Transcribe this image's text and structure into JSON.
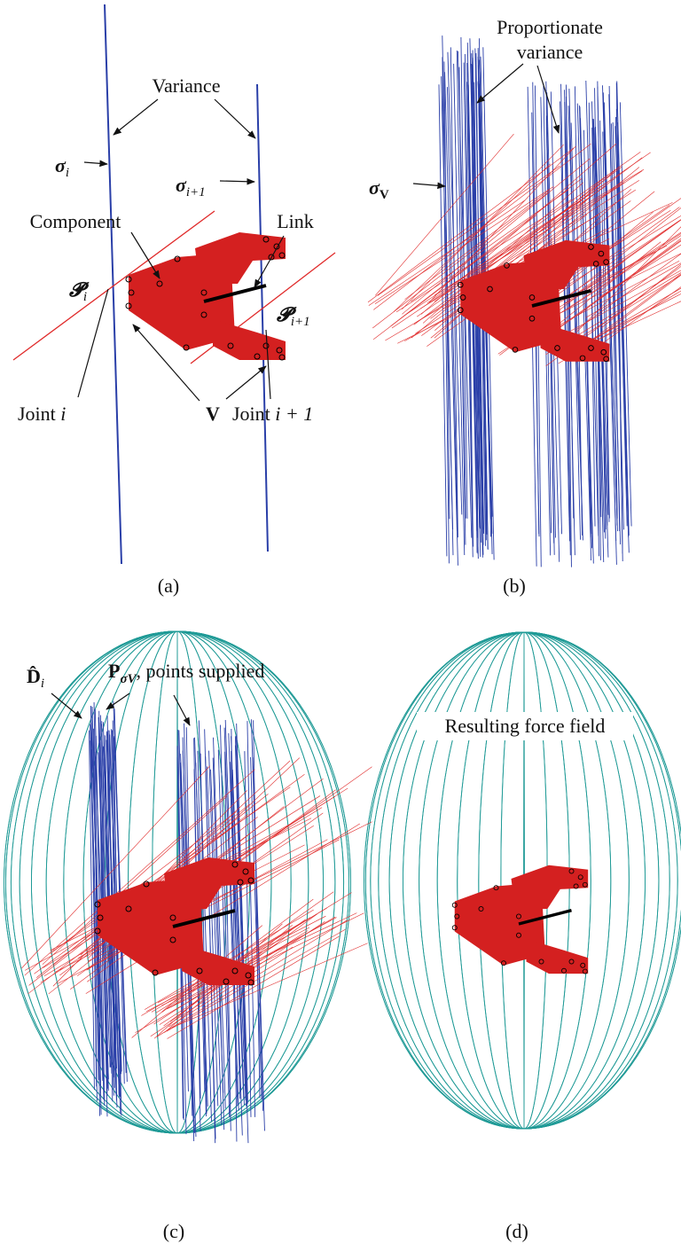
{
  "panels": [
    {
      "caption": "(a)",
      "labels": [
        {
          "text": "Variance"
        },
        {
          "text": "σ",
          "sub": "i"
        },
        {
          "text": "σ",
          "sub": "i+1"
        },
        {
          "text": "Component"
        },
        {
          "text": "Link"
        },
        {
          "text": "𝓟",
          "sub": "i"
        },
        {
          "text": "𝓟",
          "sub": "i+1"
        },
        {
          "text": "Joint",
          "math": "i"
        },
        {
          "text": "V"
        },
        {
          "text": "Joint",
          "math": "i + 1"
        }
      ]
    },
    {
      "caption": "(b)",
      "labels": [
        {
          "text": "Proportionate"
        },
        {
          "text": "variance"
        },
        {
          "text": "σ",
          "sub": "V"
        }
      ]
    },
    {
      "caption": "(c)",
      "labels": [
        {
          "text": "D̂",
          "sub": "i"
        },
        {
          "text": "P",
          "sub": "σV",
          "rest": ", points supplied"
        }
      ]
    },
    {
      "caption": "(d)",
      "labels": [
        {
          "text": "Resulting force field"
        }
      ]
    }
  ]
}
